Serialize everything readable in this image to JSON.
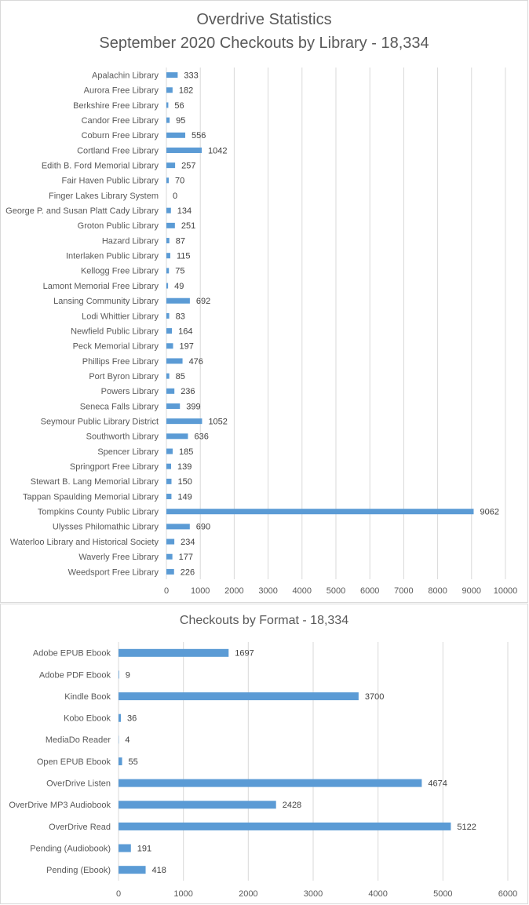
{
  "chart_data": [
    {
      "type": "bar",
      "orientation": "horizontal",
      "title": "Overdrive Statistics",
      "subtitle": "September 2020 Checkouts by Library - 18,334",
      "categories": [
        "Apalachin Library",
        "Aurora Free Library",
        "Berkshire Free Library",
        "Candor Free Library",
        "Coburn Free Library",
        "Cortland Free Library",
        "Edith B. Ford Memorial Library",
        "Fair Haven Public Library",
        "Finger Lakes Library System",
        "George P. and Susan Platt Cady Library",
        "Groton Public Library",
        "Hazard Library",
        "Interlaken Public Library",
        "Kellogg Free Library",
        "Lamont Memorial Free Library",
        "Lansing Community Library",
        "Lodi Whittier Library",
        "Newfield Public Library",
        "Peck Memorial Library",
        "Phillips Free Library",
        "Port Byron Library",
        "Powers Library",
        "Seneca Falls Library",
        "Seymour Public Library District",
        "Southworth Library",
        "Spencer Library",
        "Springport Free Library",
        "Stewart B. Lang Memorial Library",
        "Tappan Spaulding Memorial Library",
        "Tompkins County Public Library",
        "Ulysses Philomathic Library",
        "Waterloo Library and Historical Society",
        "Waverly Free Library",
        "Weedsport Free Library"
      ],
      "values": [
        333,
        182,
        56,
        95,
        556,
        1042,
        257,
        70,
        0,
        134,
        251,
        87,
        115,
        75,
        49,
        692,
        83,
        164,
        197,
        476,
        85,
        236,
        399,
        1052,
        636,
        185,
        139,
        150,
        149,
        9062,
        690,
        234,
        177,
        226
      ],
      "xlim": [
        0,
        10000
      ],
      "xticks": [
        0,
        1000,
        2000,
        3000,
        4000,
        5000,
        6000,
        7000,
        8000,
        9000,
        10000
      ],
      "grid": "vertical",
      "bar_color": "#5b9bd5"
    },
    {
      "type": "bar",
      "orientation": "horizontal",
      "title": "Checkouts by Format - 18,334",
      "categories": [
        "Adobe EPUB Ebook",
        "Adobe PDF Ebook",
        "Kindle Book",
        "Kobo Ebook",
        "MediaDo Reader",
        "Open EPUB Ebook",
        "OverDrive Listen",
        "OverDrive MP3 Audiobook",
        "OverDrive Read",
        "Pending (Audiobook)",
        "Pending (Ebook)"
      ],
      "values": [
        1697,
        9,
        3700,
        36,
        4,
        55,
        4674,
        2428,
        5122,
        191,
        418
      ],
      "xlim": [
        0,
        6000
      ],
      "xticks": [
        0,
        1000,
        2000,
        3000,
        4000,
        5000,
        6000
      ],
      "grid": "vertical",
      "bar_color": "#5b9bd5"
    }
  ]
}
